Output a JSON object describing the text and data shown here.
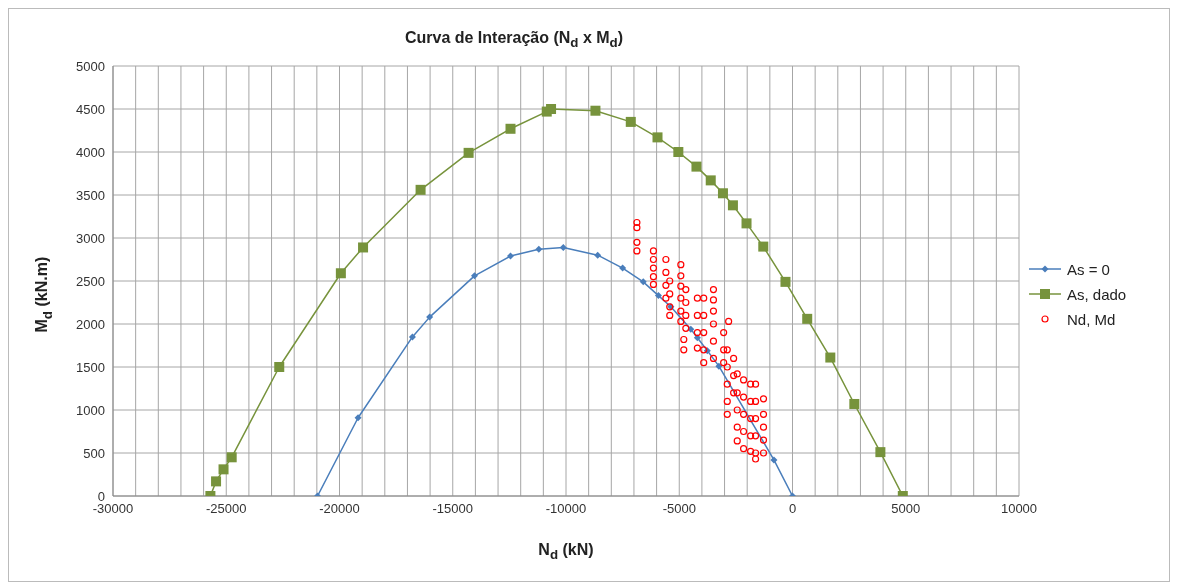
{
  "chart_data": {
    "type": "line",
    "title": "Curva de Interação (N$_{d}$ x M$_{d}$)",
    "xlabel": "N$_{d}$ (kN)",
    "ylabel": "M$_{d}$ (kN.m)",
    "xlim": [
      -30000,
      10000
    ],
    "xticks": [
      -30000,
      {
        "value": -29000,
        "label": null
      },
      {
        "value": -28000,
        "label": null
      },
      {
        "value": -27000,
        "label": null
      },
      {
        "value": -26000,
        "label": null
      },
      -25000,
      {
        "value": -24000,
        "label": null
      },
      {
        "value": -23000,
        "label": null
      },
      {
        "value": -22000,
        "label": null
      },
      {
        "value": -21000,
        "label": null
      },
      -20000,
      {
        "value": -19000,
        "label": null
      },
      {
        "value": -18000,
        "label": null
      },
      {
        "value": -17000,
        "label": null
      },
      {
        "value": -16000,
        "label": null
      },
      -15000,
      {
        "value": -14000,
        "label": null
      },
      {
        "value": -13000,
        "label": null
      },
      {
        "value": -12000,
        "label": null
      },
      {
        "value": -11000,
        "label": null
      },
      -10000,
      {
        "value": -9000,
        "label": null
      },
      {
        "value": -8000,
        "label": null
      },
      {
        "value": -7000,
        "label": null
      },
      {
        "value": -6000,
        "label": null
      },
      -5000,
      {
        "value": -4000,
        "label": null
      },
      {
        "value": -3000,
        "label": null
      },
      {
        "value": -2000,
        "label": null
      },
      {
        "value": -1000,
        "label": null
      },
      0,
      {
        "value": 1000,
        "label": null
      },
      {
        "value": 2000,
        "label": null
      },
      {
        "value": 3000,
        "label": null
      },
      {
        "value": 4000,
        "label": null
      },
      5000,
      {
        "value": 6000,
        "label": null
      },
      {
        "value": 7000,
        "label": null
      },
      {
        "value": 8000,
        "label": null
      },
      {
        "value": 9000,
        "label": null
      },
      10000
    ],
    "ylim": [
      0,
      5000
    ],
    "yticks": [
      0,
      500,
      1000,
      1500,
      2000,
      2500,
      3000,
      3500,
      4000,
      4500,
      5000
    ],
    "grid": true,
    "legend": "right",
    "series": [
      {
        "name": "As = 0",
        "marker": "diamond",
        "color": "#4a7ebb",
        "x": [
          -20970,
          -19180,
          -16780,
          -16020,
          -14040,
          -12450,
          -11200,
          -10120,
          -8600,
          -7500,
          -6590,
          -5920,
          -5370,
          -4490,
          -4200,
          -3760,
          -3250,
          -820,
          0
        ],
        "values": [
          0,
          910,
          1850,
          2080,
          2560,
          2790,
          2870,
          2890,
          2800,
          2650,
          2490,
          2330,
          2200,
          1940,
          1840,
          1690,
          1510,
          420,
          0
        ]
      },
      {
        "name": "As, dado",
        "marker": "square",
        "color": "#77933c",
        "x": [
          -25700,
          -25450,
          -25120,
          -24760,
          -22660,
          -19940,
          -18960,
          -16420,
          -14300,
          -12450,
          -10850,
          -10660,
          -8700,
          -7140,
          -5960,
          -5040,
          -4240,
          -3610,
          -3070,
          -2630,
          -2030,
          -1290,
          -310,
          650,
          1670,
          2730,
          3880,
          4870
        ],
        "values": [
          0,
          170,
          310,
          450,
          1500,
          2590,
          2890,
          3560,
          3990,
          4270,
          4470,
          4500,
          4480,
          4350,
          4170,
          4000,
          3830,
          3670,
          3520,
          3380,
          3170,
          2900,
          2490,
          2060,
          1610,
          1070,
          510,
          0
        ]
      },
      {
        "name": "Nd, Md",
        "type": "scatter",
        "marker": "circle",
        "color": "#ff0000",
        "x": [
          -6870,
          -6870,
          -6870,
          -6870,
          -6140,
          -6140,
          -6140,
          -6140,
          -6140,
          -5590,
          -5590,
          -5590,
          -5590,
          -5420,
          -5420,
          -5420,
          -5420,
          -4930,
          -4930,
          -4930,
          -4930,
          -4930,
          -4930,
          -4710,
          -4710,
          -4710,
          -4710,
          -4800,
          -4800,
          -4200,
          -4200,
          -4200,
          -4200,
          -3920,
          -3920,
          -3920,
          -3920,
          -3920,
          -3490,
          -3490,
          -3490,
          -3490,
          -3490,
          -3490,
          -3040,
          -3040,
          -3040,
          -2820,
          -2880,
          -2880,
          -2880,
          -2880,
          -2880,
          -2600,
          -2600,
          -2600,
          -2440,
          -2440,
          -2440,
          -2440,
          -2440,
          -2160,
          -2160,
          -2160,
          -2160,
          -2160,
          -1850,
          -1850,
          -1850,
          -1850,
          -1850,
          -1630,
          -1630,
          -1630,
          -1630,
          -1630,
          -1630,
          -1280,
          -1280,
          -1280,
          -1280,
          -1280
        ],
        "values": [
          3180,
          3120,
          2950,
          2850,
          2850,
          2750,
          2650,
          2550,
          2460,
          2750,
          2600,
          2450,
          2300,
          2500,
          2350,
          2200,
          2100,
          2690,
          2560,
          2440,
          2300,
          2150,
          2030,
          2400,
          2250,
          2100,
          1950,
          1820,
          1700,
          2300,
          2100,
          1900,
          1720,
          2300,
          2100,
          1900,
          1700,
          1550,
          2400,
          2280,
          2150,
          2000,
          1800,
          1600,
          1900,
          1700,
          1550,
          2030,
          1700,
          1500,
          1300,
          1100,
          950,
          1600,
          1400,
          1200,
          1420,
          1200,
          1000,
          800,
          640,
          1350,
          1150,
          950,
          750,
          550,
          1300,
          1100,
          900,
          700,
          520,
          1300,
          1100,
          900,
          700,
          500,
          430,
          1130,
          950,
          800,
          650,
          500
        ]
      }
    ]
  }
}
